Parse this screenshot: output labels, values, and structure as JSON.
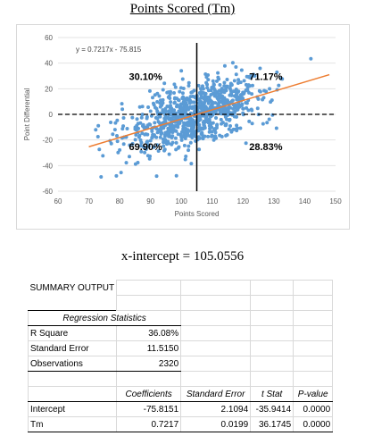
{
  "chart_title": "Points Scored (Tm)",
  "chart_data": {
    "type": "scatter",
    "title": "Points Scored (Tm)",
    "xlabel": "Points Scored",
    "ylabel": "Point Differential",
    "xlim": [
      60,
      150
    ],
    "ylim": [
      -60,
      60
    ],
    "x_ticks": [
      60,
      70,
      80,
      90,
      100,
      110,
      120,
      130,
      140,
      150
    ],
    "y_ticks": [
      -60,
      -40,
      -20,
      0,
      20,
      40,
      60
    ],
    "grid": true,
    "trendline": {
      "equation": "y = 0.7217x - 75.815",
      "slope": 0.7217,
      "intercept": -75.815,
      "x_range": [
        60,
        150
      ]
    },
    "vertical_line_x": 105,
    "horizontal_line_y": 0,
    "quadrant_labels": {
      "top_left": "30.10%",
      "top_right": "71.17%",
      "bottom_left": "69.90%",
      "bottom_right": "28.83%"
    },
    "n_points": 2320,
    "point_color": "#5b9bd5",
    "trend_color": "#ed7d31"
  },
  "x_intercept_text": "x-intercept = 105.0556",
  "summary": {
    "header": "SUMMARY OUTPUT",
    "reg_stats_header": "Regression Statistics",
    "stats": [
      {
        "label": "R Square",
        "value": "36.08%"
      },
      {
        "label": "Standard Error",
        "value": "11.5150"
      },
      {
        "label": "Observations",
        "value": "2320"
      }
    ],
    "coef_headers": [
      "Coefficients",
      "Standard Error",
      "t Stat",
      "P-value"
    ],
    "coef_rows": [
      {
        "label": "Intercept",
        "values": [
          "-75.8151",
          "2.1094",
          "-35.9414",
          "0.0000"
        ]
      },
      {
        "label": "Tm",
        "values": [
          "0.7217",
          "0.0199",
          "36.1745",
          "0.0000"
        ]
      }
    ]
  }
}
